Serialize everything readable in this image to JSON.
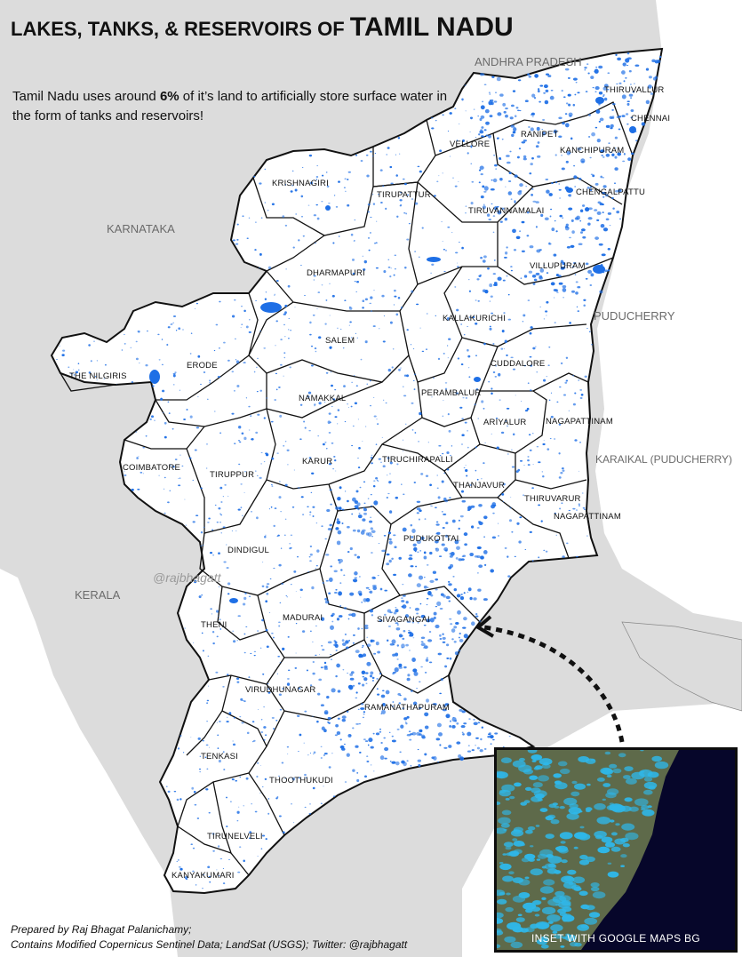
{
  "title": {
    "part1": "LAKES, TANKS, & RESERVOIRS OF ",
    "part2": "TAMIL NADU"
  },
  "subtitle": {
    "before": "Tamil Nadu uses around ",
    "highlight": "6%",
    "after": " of it’s land to artificially store surface water in the form of tanks and reservoirs!"
  },
  "neighbors": {
    "andhra_pradesh": "ANDHRA PRADESH",
    "karnataka": "KARNATAKA",
    "kerala": "KERALA",
    "puducherry": "PUDUCHERRY",
    "karaikal": "KARAIKAL (PUDUCHERRY)"
  },
  "districts": {
    "thiruvallur": "THIRUVALLUR",
    "chennai": "CHENNAI",
    "ranipet": "RANIPET",
    "vellore": "VELLORE",
    "kanchipuram": "KANCHIPURAM",
    "krishnagiri": "KRISHNAGIRI",
    "tirupattur": "TIRUPATTUR",
    "chengalpattu": "CHENGALPATTU",
    "tiruvannamalai": "TIRUVANNAMALAI",
    "dharmapuri": "DHARMAPURI",
    "villupuram": "VILLUPURAM",
    "kallakurichi": "KALLAKURICHI",
    "salem": "SALEM",
    "the_nilgiris": "THE NILGIRIS",
    "erode": "ERODE",
    "cuddalore": "CUDDALORE",
    "namakkal": "NAMAKKAL",
    "perambalur": "PERAMBALUR",
    "ariyalur": "ARIYALUR",
    "nagapattinam_north": "NAGAPATTINAM",
    "coimbatore": "COIMBATORE",
    "karur": "KARUR",
    "tiruchirapalli": "TIRUCHIRAPALLI",
    "tiruppur": "TIRUPPUR",
    "thanjavur": "THANJAVUR",
    "thiruvarur": "THIRUVARUR",
    "nagapattinam_south": "NAGAPATTINAM",
    "pudukottai": "PUDUKOTTAI",
    "dindigul": "DINDIGUL",
    "theni": "THENI",
    "madurai": "MADURAI",
    "sivagangai": "SIVAGANGAI",
    "virudhunagar": "VIRUDHUNAGAR",
    "ramanathapuram": "RAMANATHAPURAM",
    "tenkasi": "TENKASI",
    "thoothukudi": "THOOTHUKUDI",
    "tirunelveli": "TIRUNELVELI",
    "kanyakumari": "KANYAKUMARI"
  },
  "watermark": "@rajbhagatt",
  "credits": {
    "line1": "Prepared by Raj Bhagat Palanichamy;",
    "line2": "Contains Modified Copernicus Sentinel Data; LandSat (USGS); Twitter: @rajbhagatt"
  },
  "inset": {
    "caption": "INSET WITH GOOGLE MAPS BG"
  },
  "colors": {
    "land": "#ffffff",
    "water": "#1e6fe6",
    "outside": "#dcdcdc",
    "sea": "#ffffff",
    "inset_sea": "#06062a",
    "inset_land": "#5e6a4a",
    "inset_water": "#2fb7e8"
  }
}
